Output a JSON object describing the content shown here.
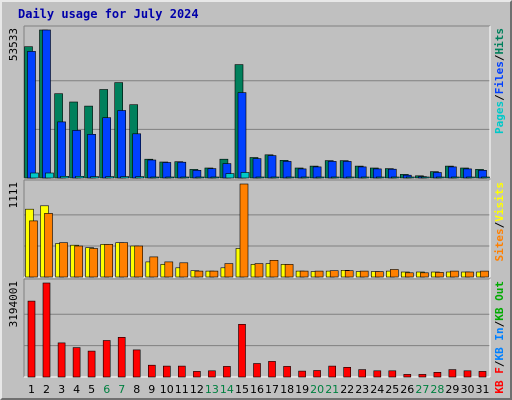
{
  "title": "Daily usage for July 2024",
  "colors": {
    "frame": "#c0c0c0",
    "title": "#0000aa",
    "hits": "#00805c",
    "files": "#0040ff",
    "pages": "#00c8c8",
    "visits": "#ffff00",
    "sites": "#ff8000",
    "kbin": "#0080ff",
    "kbout": "#00aa00",
    "kbf": "#ff0000",
    "weekend_day": "#008040",
    "weekday": "#000000"
  },
  "chart_data": {
    "type": "bar",
    "title": "Daily usage for July 2024",
    "days": [
      "1",
      "2",
      "3",
      "4",
      "5",
      "6",
      "7",
      "8",
      "9",
      "10",
      "11",
      "12",
      "13",
      "14",
      "15",
      "16",
      "17",
      "18",
      "19",
      "20",
      "21",
      "22",
      "23",
      "24",
      "25",
      "26",
      "27",
      "28",
      "29",
      "30",
      "31"
    ],
    "weekend_days": [
      "6",
      "7",
      "13",
      "14",
      "20",
      "21",
      "27",
      "28"
    ],
    "panels": [
      {
        "name": "hits-files-pages",
        "max_label": "53533",
        "ymax": 53533,
        "legend": [
          {
            "text": "Pages",
            "color": "#00c8c8"
          },
          {
            "text": "/",
            "color": "#000000"
          },
          {
            "text": "Files",
            "color": "#0040ff"
          },
          {
            "text": "/",
            "color": "#000000"
          },
          {
            "text": "Hits",
            "color": "#00805c"
          }
        ],
        "series": [
          {
            "name": "Hits",
            "color": "#00805c",
            "values": [
              47500,
              53533,
              30500,
              27500,
              26000,
              32000,
              34500,
              26500,
              6800,
              5800,
              5900,
              3100,
              3600,
              6800,
              41000,
              7400,
              8400,
              6400,
              3600,
              4300,
              6300,
              6300,
              4300,
              3600,
              3400,
              1300,
              800,
              2300,
              4300,
              3600,
              3100
            ]
          },
          {
            "name": "Files",
            "color": "#0040ff",
            "values": [
              45800,
              53533,
              20300,
              17200,
              15800,
              21800,
              24400,
              16000,
              6500,
              5600,
              5700,
              2800,
              3400,
              5200,
              30900,
              7000,
              8100,
              6000,
              3300,
              4000,
              6000,
              6000,
              4000,
              3300,
              3200,
              1000,
              500,
              2000,
              4000,
              3300,
              2800
            ]
          },
          {
            "name": "Pages",
            "color": "#00c8c8",
            "values": [
              1800,
              1800,
              600,
              600,
              500,
              500,
              500,
              500,
              200,
              200,
              200,
              100,
              100,
              1600,
              2000,
              200,
              200,
              200,
              100,
              100,
              100,
              100,
              100,
              100,
              100,
              50,
              50,
              100,
              100,
              100,
              100
            ]
          }
        ]
      },
      {
        "name": "visits-sites",
        "max_label": "1111",
        "ymax": 1111,
        "legend": [
          {
            "text": "Sites",
            "color": "#ff8000"
          },
          {
            "text": "/",
            "color": "#000000"
          },
          {
            "text": "Visits",
            "color": "#ffff00"
          }
        ],
        "series": [
          {
            "name": "Visits",
            "color": "#ffff00",
            "values": [
              810,
              850,
              400,
              380,
              350,
              390,
              410,
              370,
              180,
              150,
              110,
              75,
              70,
              110,
              340,
              150,
              160,
              150,
              70,
              65,
              70,
              80,
              65,
              65,
              70,
              60,
              60,
              60,
              60,
              60,
              60
            ]
          },
          {
            "name": "Sites",
            "color": "#ff8000",
            "values": [
              670,
              760,
              410,
              370,
              340,
              390,
              410,
              370,
              240,
              180,
              170,
              70,
              70,
              160,
              1111,
              160,
              200,
              150,
              70,
              70,
              75,
              75,
              70,
              65,
              90,
              50,
              50,
              55,
              70,
              60,
              70
            ]
          }
        ]
      },
      {
        "name": "kbytes",
        "max_label": "3194001",
        "ymax": 3194001,
        "legend": [
          {
            "text": "KB F",
            "color": "#ff0000"
          },
          {
            "text": "/",
            "color": "#000000"
          },
          {
            "text": "KB In",
            "color": "#0080ff"
          },
          {
            "text": "/",
            "color": "#000000"
          },
          {
            "text": "KB Out",
            "color": "#00aa00"
          }
        ],
        "series": [
          {
            "name": "KB F",
            "color": "#ff0000",
            "values": [
              2580000,
              3194001,
              1160000,
              1000000,
              880000,
              1240000,
              1350000,
              920000,
              400000,
              370000,
              370000,
              190000,
              210000,
              360000,
              1790000,
              460000,
              530000,
              360000,
              200000,
              220000,
              370000,
              330000,
              250000,
              210000,
              210000,
              90000,
              90000,
              160000,
              250000,
              210000,
              190000
            ]
          }
        ]
      }
    ]
  }
}
